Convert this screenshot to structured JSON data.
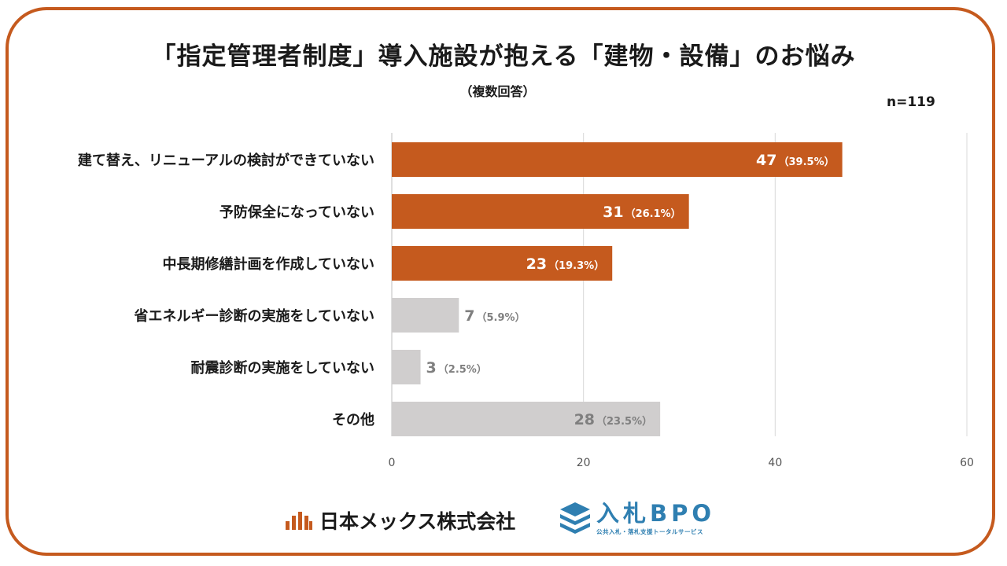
{
  "colors": {
    "border": "#c55a1e",
    "highlight": "#c55a1e",
    "muted": "#d0cece",
    "muted_text": "#7f7f7f",
    "grid": "#d9d9d9"
  },
  "chart_data": {
    "type": "bar",
    "orientation": "horizontal",
    "title": "「指定管理者制度」導入施設が抱える「建物・設備」のお悩み",
    "subtitle": "（複数回答）",
    "sample_size": "n=119",
    "xlim": [
      0,
      60
    ],
    "xticks": [
      0,
      20,
      40,
      60
    ],
    "grid": true,
    "bars": [
      {
        "label": "建て替え、リニューアルの検討ができていない",
        "value": 47,
        "value_label": "47",
        "pct_label": "（39.5%）",
        "highlight": true
      },
      {
        "label": "予防保全になっていない",
        "value": 31,
        "value_label": "31",
        "pct_label": "（26.1%）",
        "highlight": true
      },
      {
        "label": "中長期修繕計画を作成していない",
        "value": 23,
        "value_label": "23",
        "pct_label": "（19.3%）",
        "highlight": true
      },
      {
        "label": "省エネルギー診断の実施をしていない",
        "value": 7,
        "value_label": "7",
        "pct_label": "（5.9%）",
        "highlight": false
      },
      {
        "label": "耐震診断の実施をしていない",
        "value": 3,
        "value_label": "3",
        "pct_label": "（2.5%）",
        "highlight": false
      },
      {
        "label": "その他",
        "value": 28,
        "value_label": "28",
        "pct_label": "（23.5%）",
        "highlight": false
      }
    ]
  },
  "logos": {
    "company": {
      "name": "日本メックス株式会社",
      "icon": "bar-arch-icon"
    },
    "service": {
      "name": "入札BPO",
      "tagline": "公共入札・落札支援トータルサービス",
      "icon": "stacked-layers-icon"
    }
  }
}
